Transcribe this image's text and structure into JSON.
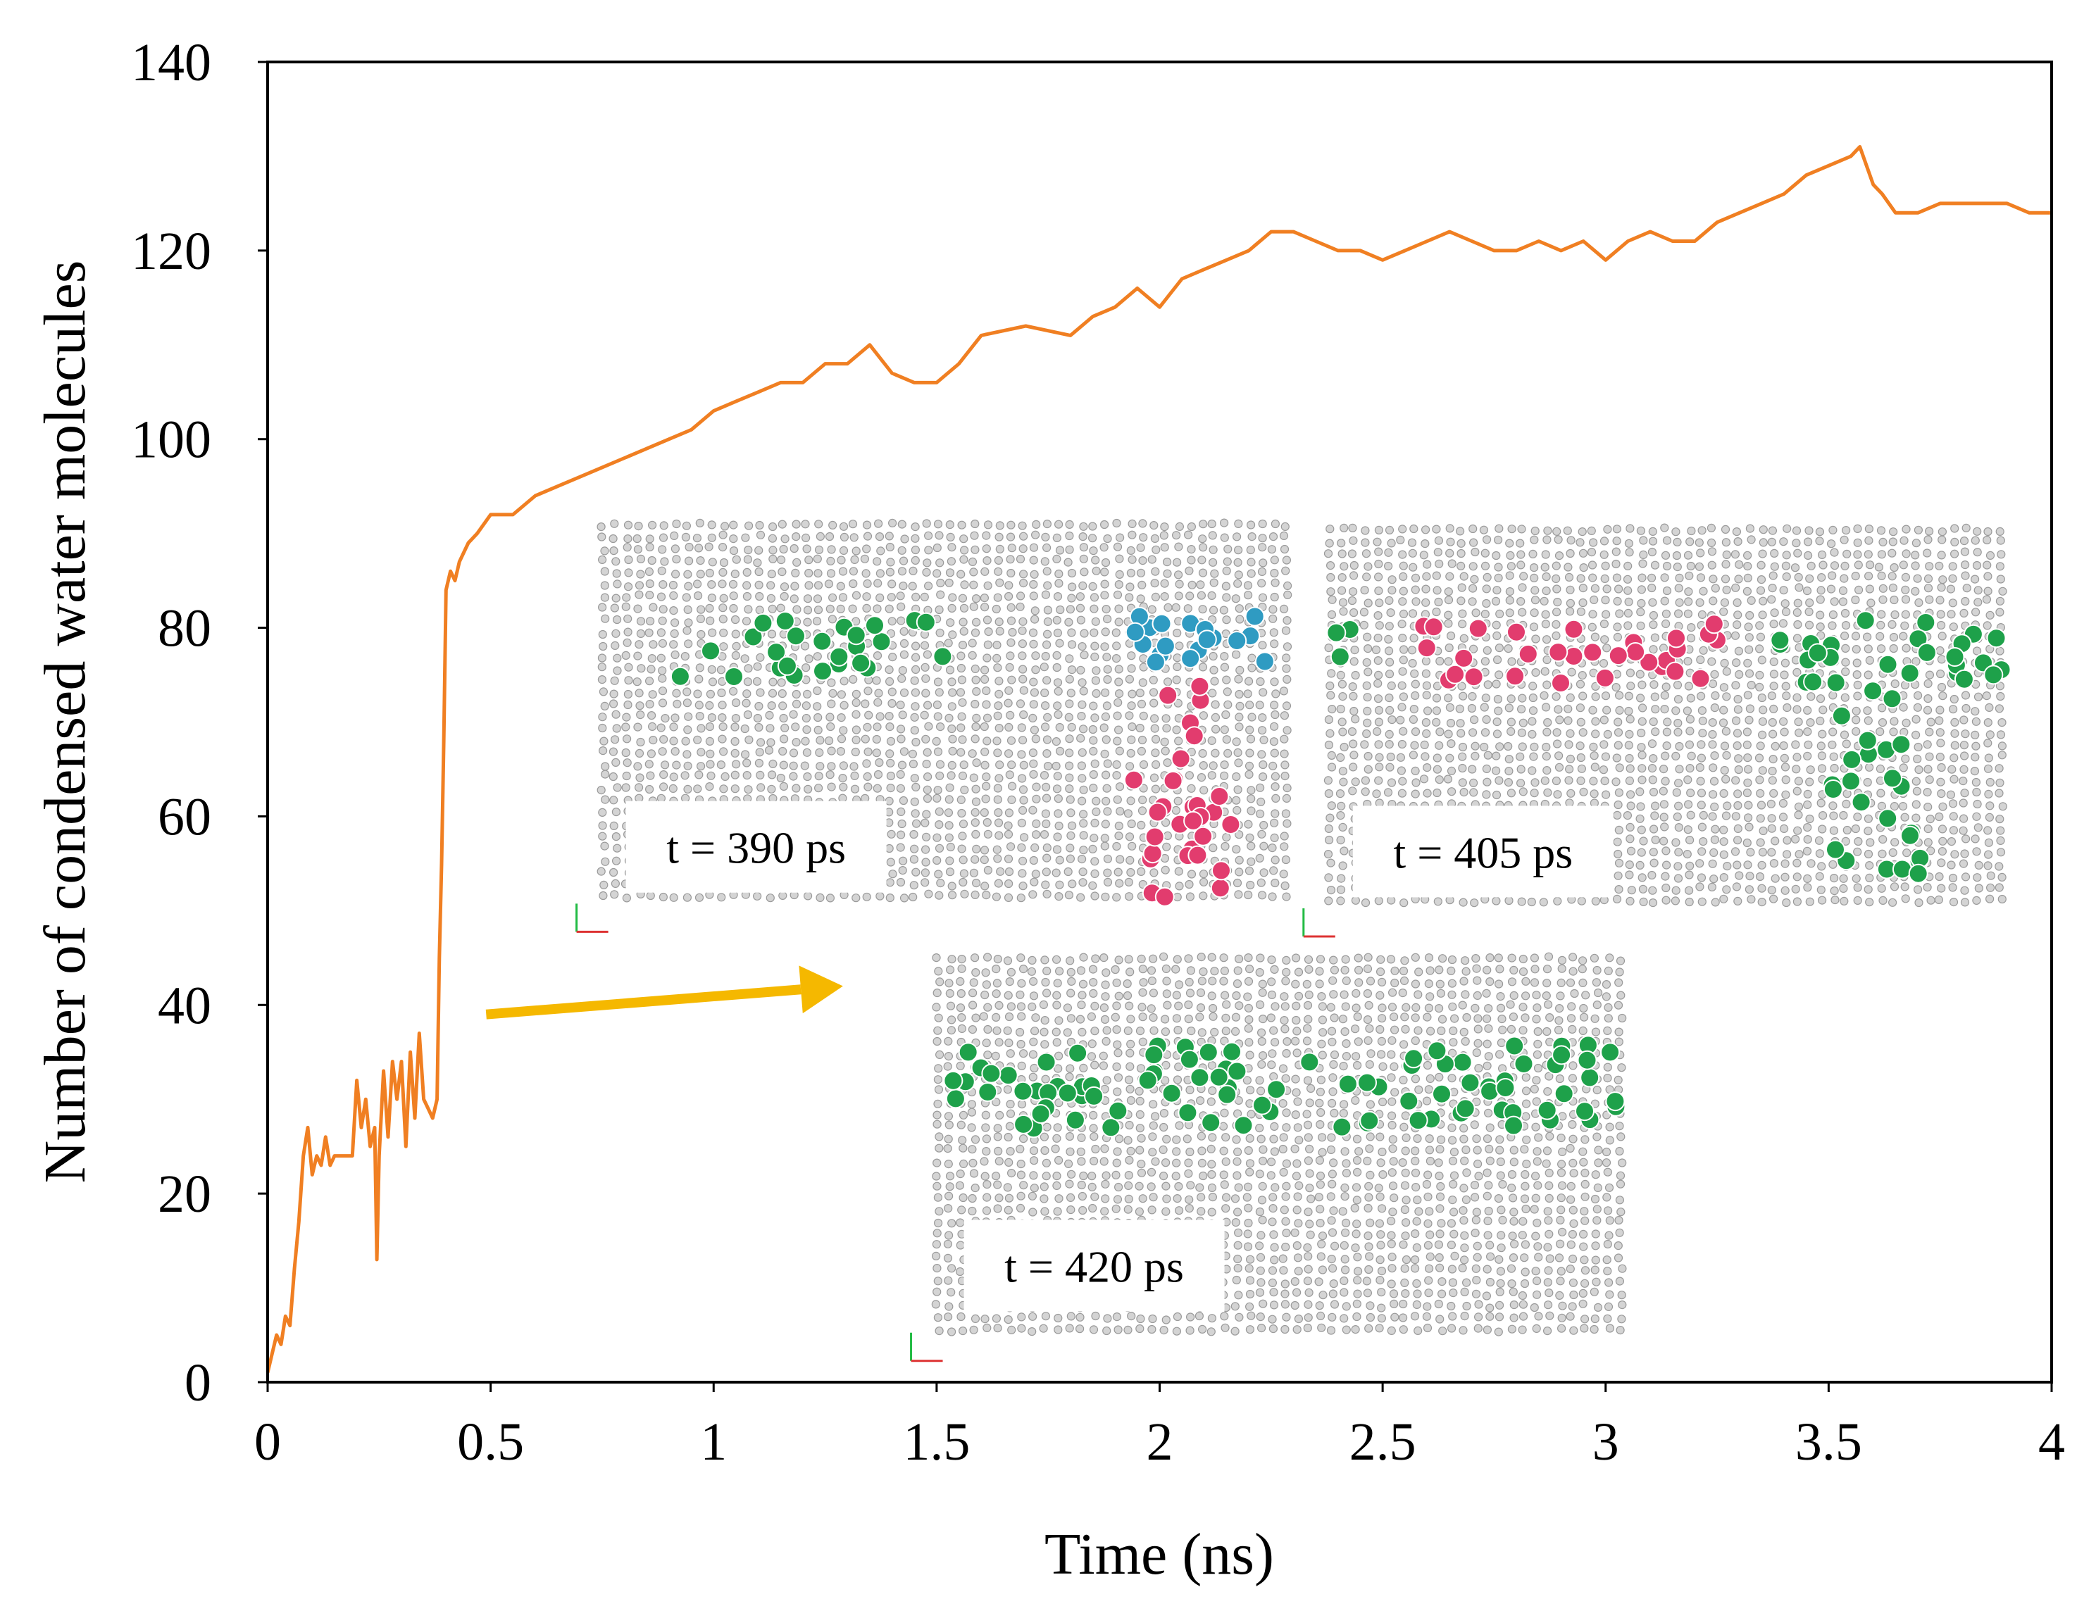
{
  "chart_data": {
    "type": "line",
    "title": "",
    "xlabel": "Time (ns)",
    "ylabel": "Number of condensed water molecules",
    "xlim": [
      0,
      4
    ],
    "ylim": [
      0,
      140
    ],
    "xticks": [
      {
        "value": 0,
        "label": "0"
      },
      {
        "value": 0.5,
        "label": "0.5"
      },
      {
        "value": 1,
        "label": "1"
      },
      {
        "value": 1.5,
        "label": "1.5"
      },
      {
        "value": 2,
        "label": "2"
      },
      {
        "value": 2.5,
        "label": "2.5"
      },
      {
        "value": 3,
        "label": "3"
      },
      {
        "value": 3.5,
        "label": "3.5"
      },
      {
        "value": 4,
        "label": "4"
      }
    ],
    "yticks": [
      {
        "value": 0,
        "label": "0"
      },
      {
        "value": 20,
        "label": "20"
      },
      {
        "value": 40,
        "label": "40"
      },
      {
        "value": 60,
        "label": "60"
      },
      {
        "value": 80,
        "label": "80"
      },
      {
        "value": 100,
        "label": "100"
      },
      {
        "value": 120,
        "label": "120"
      },
      {
        "value": 140,
        "label": "140"
      }
    ],
    "grid": false,
    "series": [
      {
        "name": "condensed water molecules",
        "color": "#f07f22",
        "x": [
          0,
          0.01,
          0.02,
          0.03,
          0.04,
          0.05,
          0.06,
          0.07,
          0.08,
          0.09,
          0.1,
          0.11,
          0.12,
          0.13,
          0.14,
          0.15,
          0.17,
          0.19,
          0.2,
          0.21,
          0.22,
          0.23,
          0.24,
          0.245,
          0.25,
          0.26,
          0.27,
          0.28,
          0.29,
          0.3,
          0.31,
          0.32,
          0.33,
          0.34,
          0.35,
          0.36,
          0.37,
          0.38,
          0.385,
          0.39,
          0.395,
          0.4,
          0.41,
          0.42,
          0.43,
          0.44,
          0.45,
          0.47,
          0.5,
          0.55,
          0.6,
          0.65,
          0.7,
          0.75,
          0.8,
          0.85,
          0.9,
          0.95,
          1.0,
          1.05,
          1.1,
          1.15,
          1.2,
          1.25,
          1.3,
          1.35,
          1.4,
          1.45,
          1.5,
          1.55,
          1.6,
          1.7,
          1.8,
          1.85,
          1.9,
          1.95,
          2.0,
          2.05,
          2.1,
          2.15,
          2.2,
          2.25,
          2.3,
          2.35,
          2.4,
          2.45,
          2.5,
          2.55,
          2.6,
          2.65,
          2.7,
          2.75,
          2.8,
          2.85,
          2.9,
          2.95,
          3.0,
          3.05,
          3.1,
          3.15,
          3.2,
          3.25,
          3.3,
          3.35,
          3.4,
          3.45,
          3.5,
          3.55,
          3.57,
          3.6,
          3.62,
          3.65,
          3.7,
          3.75,
          3.8,
          3.85,
          3.9,
          3.95,
          4.0
        ],
        "y": [
          1,
          3,
          5,
          4,
          7,
          6,
          12,
          17,
          24,
          27,
          22,
          24,
          23,
          26,
          23,
          24,
          24,
          24,
          32,
          27,
          30,
          25,
          27,
          13,
          24,
          33,
          26,
          34,
          30,
          34,
          25,
          35,
          28,
          37,
          30,
          29,
          28,
          30,
          45,
          55,
          68,
          84,
          86,
          85,
          87,
          88,
          89,
          90,
          92,
          92,
          94,
          95,
          96,
          97,
          98,
          99,
          100,
          101,
          103,
          104,
          105,
          106,
          106,
          108,
          108,
          110,
          107,
          106,
          106,
          108,
          111,
          112,
          111,
          113,
          114,
          116,
          114,
          117,
          118,
          119,
          120,
          122,
          122,
          121,
          120,
          120,
          119,
          120,
          121,
          122,
          121,
          120,
          120,
          121,
          120,
          121,
          119,
          121,
          122,
          121,
          121,
          123,
          124,
          125,
          126,
          128,
          129,
          130,
          131,
          127,
          126,
          124,
          124,
          125,
          125,
          125,
          125,
          124,
          124
        ]
      }
    ],
    "annotations": {
      "arrow": {
        "from": [
          0.49,
          39
        ],
        "to": [
          1.29,
          42
        ],
        "color": "#f5b800"
      },
      "snapshots": [
        {
          "label": "t = 390 ps",
          "x0": 0.74,
          "x1": 2.3,
          "y0": 50,
          "y1": 91.5,
          "colors": [
            "#1ea14a",
            "#2f9bc2",
            "#e23c6e"
          ]
        },
        {
          "label": "t = 405 ps",
          "x0": 2.37,
          "x1": 3.9,
          "y0": 49.5,
          "y1": 91,
          "colors": [
            "#e23c6e",
            "#1ea14a"
          ]
        },
        {
          "label": "t = 420 ps",
          "x0": 1.49,
          "x1": 3.06,
          "y0": 4.5,
          "y1": 45.5,
          "colors": [
            "#1ea14a"
          ]
        }
      ]
    }
  }
}
